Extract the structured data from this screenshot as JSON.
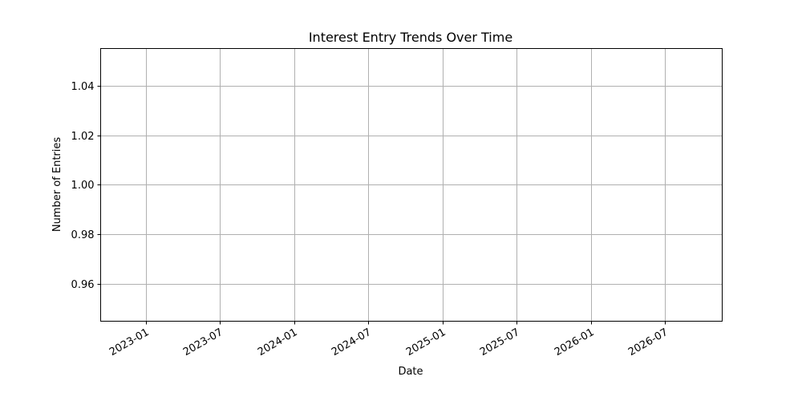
{
  "chart_data": {
    "type": "line",
    "title": "Interest Entry Trends Over Time",
    "xlabel": "Date",
    "ylabel": "Number of Entries",
    "x_axis_type": "date",
    "xlim": [
      "2022-09-12",
      "2026-11-19"
    ],
    "ylim": [
      0.945,
      1.055
    ],
    "x_ticks": [
      "2023-01",
      "2023-07",
      "2024-01",
      "2024-07",
      "2025-01",
      "2025-07",
      "2026-01",
      "2026-07"
    ],
    "y_ticks": [
      0.96,
      0.98,
      1.0,
      1.02,
      1.04
    ],
    "y_tick_labels": [
      "0.96",
      "0.98",
      "1.00",
      "1.02",
      "1.04"
    ],
    "grid": true,
    "series": []
  }
}
